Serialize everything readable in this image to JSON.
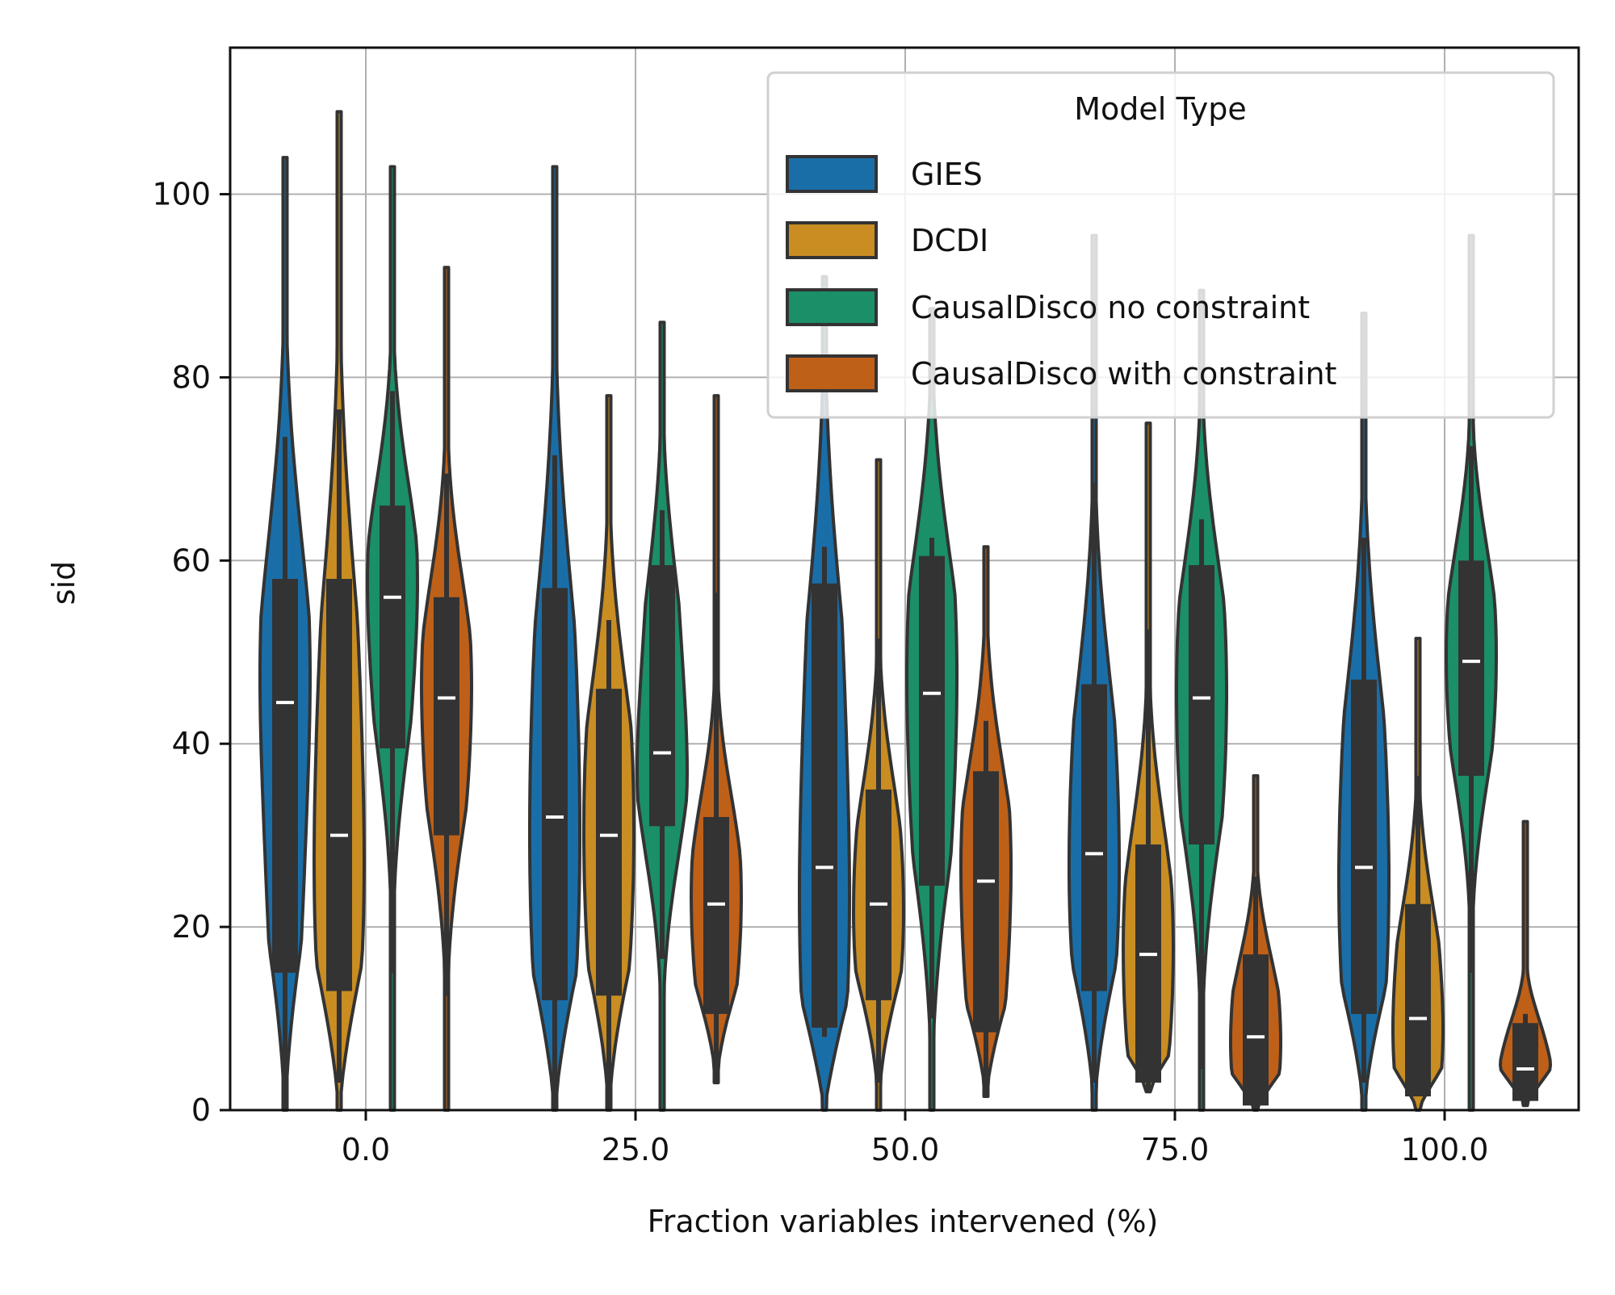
{
  "chart_data": {
    "type": "violin",
    "title": "",
    "xlabel": "Fraction variables intervened (%)",
    "ylabel": "sid",
    "categories": [
      "0.0",
      "25.0",
      "50.0",
      "75.0",
      "100.0"
    ],
    "ylim": [
      0,
      116
    ],
    "yticks": [
      0,
      20,
      40,
      60,
      80,
      100
    ],
    "grid": true,
    "legend": {
      "title": "Model Type",
      "placement": "top-right"
    },
    "series": [
      {
        "name": "GIES",
        "color": "#1a6ea8",
        "values": [
          {
            "min": 0,
            "q1": 15,
            "median": 44.5,
            "q3": 58,
            "max": 73.5,
            "kde_min": 0,
            "kde_max": 104
          },
          {
            "min": 0,
            "q1": 12,
            "median": 32,
            "q3": 57,
            "max": 71.5,
            "kde_min": 0,
            "kde_max": 103
          },
          {
            "min": 8,
            "q1": 9,
            "median": 26.5,
            "q3": 57.5,
            "max": 61.5,
            "kde_min": 0,
            "kde_max": 91
          },
          {
            "min": 3,
            "q1": 13,
            "median": 28,
            "q3": 46.5,
            "max": 68.5,
            "kde_min": 0,
            "kde_max": 95.5
          },
          {
            "min": 3,
            "q1": 10.5,
            "median": 26.5,
            "q3": 47,
            "max": 62.5,
            "kde_min": 0,
            "kde_max": 87
          }
        ]
      },
      {
        "name": "DCDI",
        "color": "#c98d22",
        "values": [
          {
            "min": 3,
            "q1": 13,
            "median": 30,
            "q3": 58,
            "max": 76.5,
            "kde_min": 0,
            "kde_max": 109
          },
          {
            "min": 0,
            "q1": 12.5,
            "median": 30,
            "q3": 46,
            "max": 53.5,
            "kde_min": 0,
            "kde_max": 78
          },
          {
            "min": 3,
            "q1": 12,
            "median": 22.5,
            "q3": 35,
            "max": 51.5,
            "kde_min": 0,
            "kde_max": 71
          },
          {
            "min": 2,
            "q1": 3,
            "median": 17,
            "q3": 29,
            "max": 52.5,
            "kde_min": 2,
            "kde_max": 75
          },
          {
            "min": 1.5,
            "q1": 1.5,
            "median": 10,
            "q3": 22.5,
            "max": 36.5,
            "kde_min": 0,
            "kde_max": 51.5
          }
        ]
      },
      {
        "name": "CausalDisco no constraint",
        "color": "#1a8f68",
        "values": [
          {
            "min": 15,
            "q1": 39.5,
            "median": 56,
            "q3": 66,
            "max": 78.5,
            "kde_min": 0,
            "kde_max": 103
          },
          {
            "min": 16.5,
            "q1": 31,
            "median": 39,
            "q3": 59.5,
            "max": 65.5,
            "kde_min": 0,
            "kde_max": 86
          },
          {
            "min": 10,
            "q1": 24.5,
            "median": 45.5,
            "q3": 60.5,
            "max": 62.5,
            "kde_min": 0,
            "kde_max": 87.5
          },
          {
            "min": 4.5,
            "q1": 29,
            "median": 45,
            "q3": 59.5,
            "max": 64.5,
            "kde_min": 0,
            "kde_max": 89.5
          },
          {
            "min": 15,
            "q1": 36.5,
            "median": 49,
            "q3": 60,
            "max": 72.5,
            "kde_min": 0,
            "kde_max": 95.5
          }
        ]
      },
      {
        "name": "CausalDisco with constraint",
        "color": "#bf6019",
        "values": [
          {
            "min": 12.5,
            "q1": 30,
            "median": 45,
            "q3": 56,
            "max": 69.5,
            "kde_min": 0,
            "kde_max": 92
          },
          {
            "min": 3,
            "q1": 10.5,
            "median": 22.5,
            "q3": 32,
            "max": 56.5,
            "kde_min": 3,
            "kde_max": 78
          },
          {
            "min": 1.5,
            "q1": 8.5,
            "median": 25,
            "q3": 37,
            "max": 42.5,
            "kde_min": 1.5,
            "kde_max": 61.5
          },
          {
            "min": 0,
            "q1": 0.5,
            "median": 8,
            "q3": 17,
            "max": 25.5,
            "kde_min": 0,
            "kde_max": 36.5
          },
          {
            "min": 0.5,
            "q1": 1,
            "median": 4.5,
            "q3": 9.5,
            "max": 10.5,
            "kde_min": 0.5,
            "kde_max": 31.5
          }
        ]
      }
    ]
  }
}
